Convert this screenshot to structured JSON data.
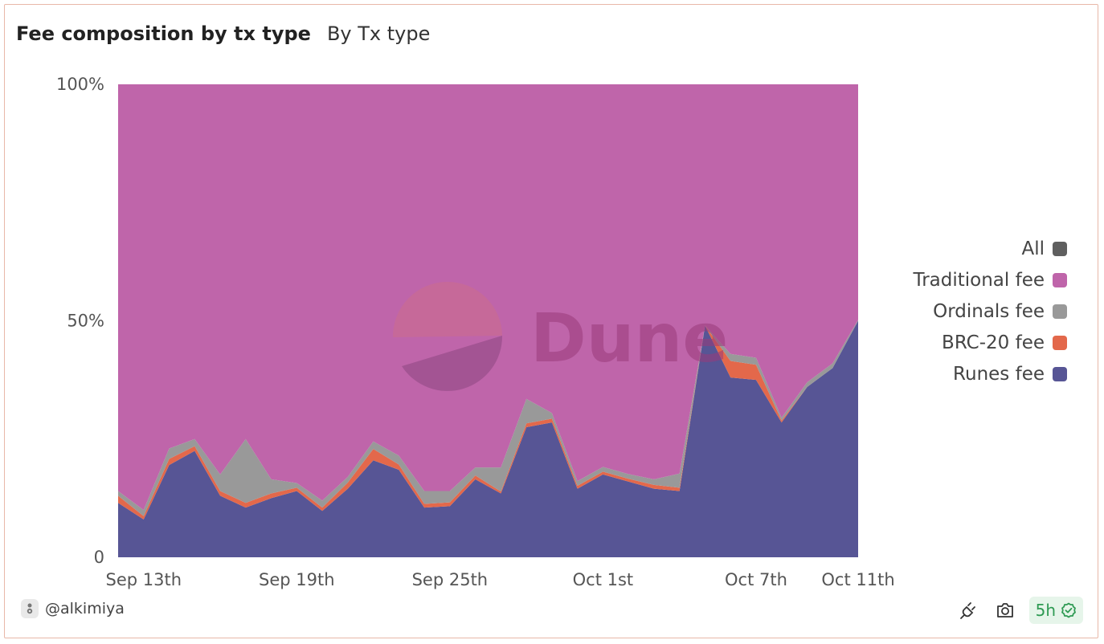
{
  "header": {
    "title": "Fee composition by tx type",
    "subtitle": "By Tx type"
  },
  "footer": {
    "author": "@alkimiya",
    "freshness": "5h"
  },
  "icons": {
    "author_avatar": "avatar-icon",
    "refresh": "plug-refresh-icon",
    "screenshot": "camera-icon",
    "freshness_check": "check-circle-icon"
  },
  "colors": {
    "All": "#5f5f5f",
    "Traditional fee": "#bf65aa",
    "Ordinals fee": "#999999",
    "BRC-20 fee": "#e3684b",
    "Runes fee": "#575595"
  },
  "watermark": "Dune",
  "legend": [
    {
      "label": "All",
      "color": "#5f5f5f"
    },
    {
      "label": "Traditional fee",
      "color": "#bf65aa"
    },
    {
      "label": "Ordinals fee",
      "color": "#999999"
    },
    {
      "label": "BRC-20 fee",
      "color": "#e3684b"
    },
    {
      "label": "Runes fee",
      "color": "#575595"
    }
  ],
  "chart_data": {
    "type": "area",
    "stacked": true,
    "normalized_percent": true,
    "x": [
      "Sep 12",
      "Sep 13",
      "Sep 14",
      "Sep 15",
      "Sep 16",
      "Sep 17",
      "Sep 18",
      "Sep 19",
      "Sep 20",
      "Sep 21",
      "Sep 22",
      "Sep 23",
      "Sep 24",
      "Sep 25",
      "Sep 26",
      "Sep 27",
      "Sep 28",
      "Sep 29",
      "Sep 30",
      "Oct 1",
      "Oct 2",
      "Oct 3",
      "Oct 4",
      "Oct 5",
      "Oct 6",
      "Oct 7",
      "Oct 8",
      "Oct 9",
      "Oct 10",
      "Oct 11"
    ],
    "x_tick_labels": [
      {
        "x": "Sep 13",
        "label": "Sep 13th"
      },
      {
        "x": "Sep 19",
        "label": "Sep 19th"
      },
      {
        "x": "Sep 25",
        "label": "Sep 25th"
      },
      {
        "x": "Oct 1",
        "label": "Oct 1st"
      },
      {
        "x": "Oct 7",
        "label": "Oct 7th"
      },
      {
        "x": "Oct 11",
        "label": "Oct 11th"
      }
    ],
    "y_tick_labels": [
      {
        "value": 0,
        "label": "0"
      },
      {
        "value": 50,
        "label": "50%"
      },
      {
        "value": 100,
        "label": "100%"
      }
    ],
    "ylim": [
      0,
      100
    ],
    "series": [
      {
        "name": "Runes fee",
        "values": [
          11.5,
          8,
          19.5,
          22.5,
          13,
          10.5,
          12.5,
          14,
          9.8,
          14.5,
          20.5,
          18.5,
          10.5,
          10.8,
          16.5,
          13.5,
          27.5,
          28.5,
          14.5,
          17.5,
          16,
          14.5,
          14,
          49,
          38,
          37.5,
          28.5,
          36,
          40,
          50
        ]
      },
      {
        "name": "BRC-20 fee",
        "values": [
          1.5,
          0.7,
          1.3,
          1,
          1,
          1,
          1,
          0.7,
          0.7,
          1.3,
          2.4,
          1.1,
          0.8,
          0.8,
          0.8,
          0.4,
          0.8,
          0.8,
          0.6,
          0.6,
          0.6,
          0.8,
          0.7,
          0,
          3.5,
          3.2,
          0.4,
          0,
          0,
          0
        ]
      },
      {
        "name": "Ordinals fee",
        "values": [
          1,
          1.3,
          2.2,
          1.5,
          3.5,
          13.5,
          3,
          1,
          1.5,
          1.2,
          1.6,
          1.9,
          2.7,
          2.4,
          1.7,
          5.1,
          5.2,
          1.2,
          1,
          1,
          1,
          1.2,
          3,
          0,
          1.5,
          1.5,
          0.6,
          1,
          1,
          0.2
        ]
      },
      {
        "name": "Traditional fee",
        "values": [
          86,
          90,
          77,
          75,
          82.5,
          75,
          83.5,
          84.3,
          88,
          83,
          75.5,
          78.5,
          86,
          86,
          81,
          81,
          66.5,
          69.5,
          83.9,
          80.9,
          82.4,
          83.5,
          82.3,
          51,
          57,
          57.8,
          70.5,
          63,
          59,
          49.8
        ]
      }
    ]
  }
}
